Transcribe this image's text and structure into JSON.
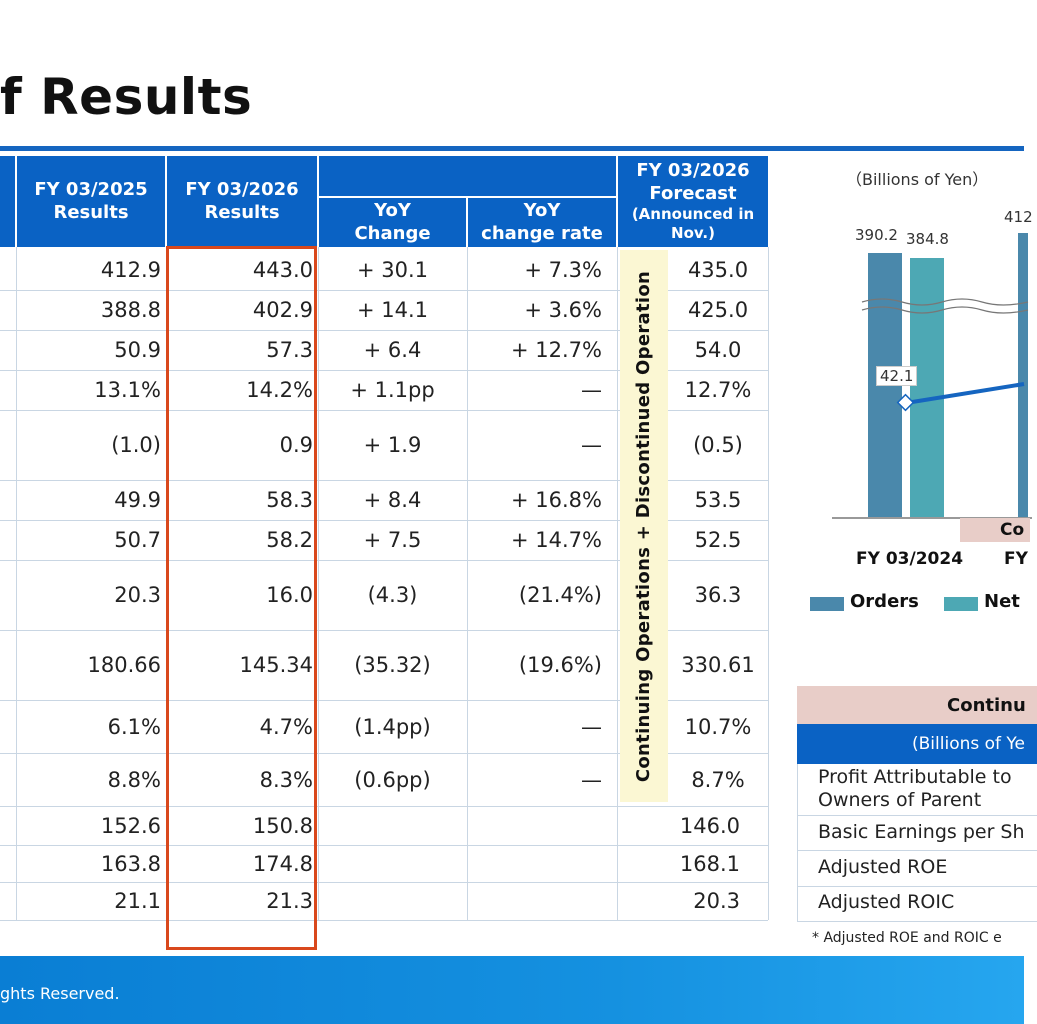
{
  "title": "f Results",
  "columns": {
    "fy2025": [
      "FY 03/2025",
      "Results"
    ],
    "fy2026": [
      "FY 03/2026",
      "Results"
    ],
    "yoy_change": [
      "YoY",
      "Change"
    ],
    "yoy_rate": [
      "YoY",
      "change rate"
    ],
    "forecast": [
      "FY 03/2026",
      "Forecast"
    ],
    "forecast_note": [
      "(Announced in",
      "Nov.)"
    ]
  },
  "rows": [
    {
      "fy2025": "412.9",
      "fy2026": "443.0",
      "change": "+ 30.1",
      "rate": "+ 7.3%",
      "forecast": "435.0"
    },
    {
      "fy2025": "388.8",
      "fy2026": "402.9",
      "change": "+ 14.1",
      "rate": "+ 3.6%",
      "forecast": "425.0"
    },
    {
      "fy2025": "50.9",
      "fy2026": "57.3",
      "change": "+ 6.4",
      "rate": "+ 12.7%",
      "forecast": "54.0"
    },
    {
      "fy2025": "13.1%",
      "fy2026": "14.2%",
      "change": "+ 1.1pp",
      "rate": "—",
      "forecast": "12.7%"
    },
    {
      "fy2025": "(1.0)",
      "fy2026": "0.9",
      "change": "+ 1.9",
      "rate": "—",
      "forecast": "(0.5)"
    },
    {
      "fy2025": "49.9",
      "fy2026": "58.3",
      "change": "+ 8.4",
      "rate": "+ 16.8%",
      "forecast": "53.5"
    },
    {
      "fy2025": "50.7",
      "fy2026": "58.2",
      "change": "+ 7.5",
      "rate": "+ 14.7%",
      "forecast": "52.5"
    },
    {
      "fy2025": "20.3",
      "fy2026": "16.0",
      "change": "(4.3)",
      "rate": "(21.4%)",
      "forecast": "36.3"
    },
    {
      "fy2025": "180.66",
      "fy2026": "145.34",
      "change": "(35.32)",
      "rate": "(19.6%)",
      "forecast": "330.61"
    },
    {
      "fy2025": "6.1%",
      "fy2026": "4.7%",
      "change": "(1.4pp)",
      "rate": "—",
      "forecast": "10.7%"
    },
    {
      "fy2025": "8.8%",
      "fy2026": "8.3%",
      "change": "(0.6pp)",
      "rate": "—",
      "forecast": "8.7%"
    },
    {
      "fy2025": "152.6",
      "fy2026": "150.8",
      "change": "",
      "rate": "",
      "forecast": "146.0"
    },
    {
      "fy2025": "163.8",
      "fy2026": "174.8",
      "change": "",
      "rate": "",
      "forecast": "168.1"
    },
    {
      "fy2025": "21.1",
      "fy2026": "21.3",
      "change": "",
      "rate": "",
      "forecast": "20.3"
    }
  ],
  "vertical_label": "Continuing Operations  +  Discontinued Operation",
  "chart": {
    "unit": "（Billions of Yen）",
    "labels": {
      "orders_2024": "390.2",
      "sales_2024": "384.8",
      "point_2024": "42.1",
      "next_label": "412"
    },
    "x_labels": [
      "FY 03/2024",
      "FY"
    ],
    "banner_partial": "Co",
    "legend": {
      "orders": "Orders",
      "net": "Net"
    },
    "colors": {
      "orders": "#4a88ab",
      "net": "#4da8b4",
      "line": "#1565c0"
    }
  },
  "right_table": {
    "header1": "Continu",
    "header2": "(Billions of Ye",
    "rows": [
      [
        "Profit Attributable to",
        "Owners of Parent"
      ],
      [
        "Basic Earnings per Sh"
      ],
      [
        "Adjusted ROE"
      ],
      [
        "Adjusted ROIC"
      ]
    ]
  },
  "footnote": "* Adjusted ROE and ROIC e",
  "footer": "ghts Reserved."
}
